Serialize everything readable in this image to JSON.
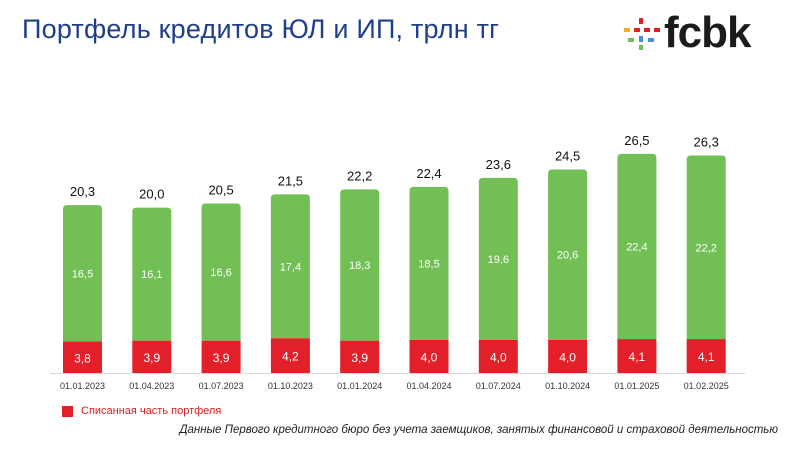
{
  "header": {
    "title": "Портфель кредитов ЮЛ и ИП, трлн тг",
    "logo_text": "fcbk"
  },
  "colors": {
    "green": "#72bf56",
    "red": "#e3202a",
    "title": "#1f3f8a"
  },
  "chart_data": {
    "type": "bar",
    "stacked": true,
    "categories": [
      "01.01.2023",
      "01.04.2023",
      "01.07.2023",
      "01.10.2023",
      "01.01.2024",
      "01.04.2024",
      "01.07.2024",
      "01.10.2024",
      "01.01.2025",
      "01.02.2025"
    ],
    "series": [
      {
        "name": "Списанная часть портфеля",
        "values": [
          3.8,
          3.9,
          3.9,
          4.2,
          3.9,
          4.0,
          4.0,
          4.0,
          4.1,
          4.1
        ],
        "labels": [
          "3,8",
          "3,9",
          "3,9",
          "4,2",
          "3,9",
          "4,0",
          "4,0",
          "4,0",
          "4,1",
          "4,1"
        ],
        "color": "#e3202a"
      },
      {
        "values": [
          16.5,
          16.1,
          16.6,
          17.4,
          18.3,
          18.5,
          19.6,
          20.6,
          22.4,
          22.2
        ],
        "labels": [
          "16,5",
          "16,1",
          "16,6",
          "17,4",
          "18,3",
          "18,5",
          "19,6",
          "20,6",
          "22,4",
          "22,2"
        ],
        "color": "#72bf56"
      }
    ],
    "totals": [
      20.3,
      20.0,
      20.5,
      21.5,
      22.2,
      22.4,
      23.6,
      24.5,
      26.5,
      26.3
    ],
    "total_labels": [
      "20,3",
      "20,0",
      "20,5",
      "21,5",
      "22,2",
      "22,4",
      "23,6",
      "24,5",
      "26,5",
      "26,3"
    ],
    "title": "Портфель кредитов ЮЛ и ИП, трлн тг",
    "xlabel": "",
    "ylabel": "",
    "ylim": [
      0,
      27
    ],
    "grid": false,
    "legend_position": "bottom-left"
  },
  "legend": {
    "label": "Списанная часть портфеля"
  },
  "footer": {
    "source": "Данные Первого кредитного бюро без учета заемщиков, занятых финансовой и страховой деятельностью"
  }
}
